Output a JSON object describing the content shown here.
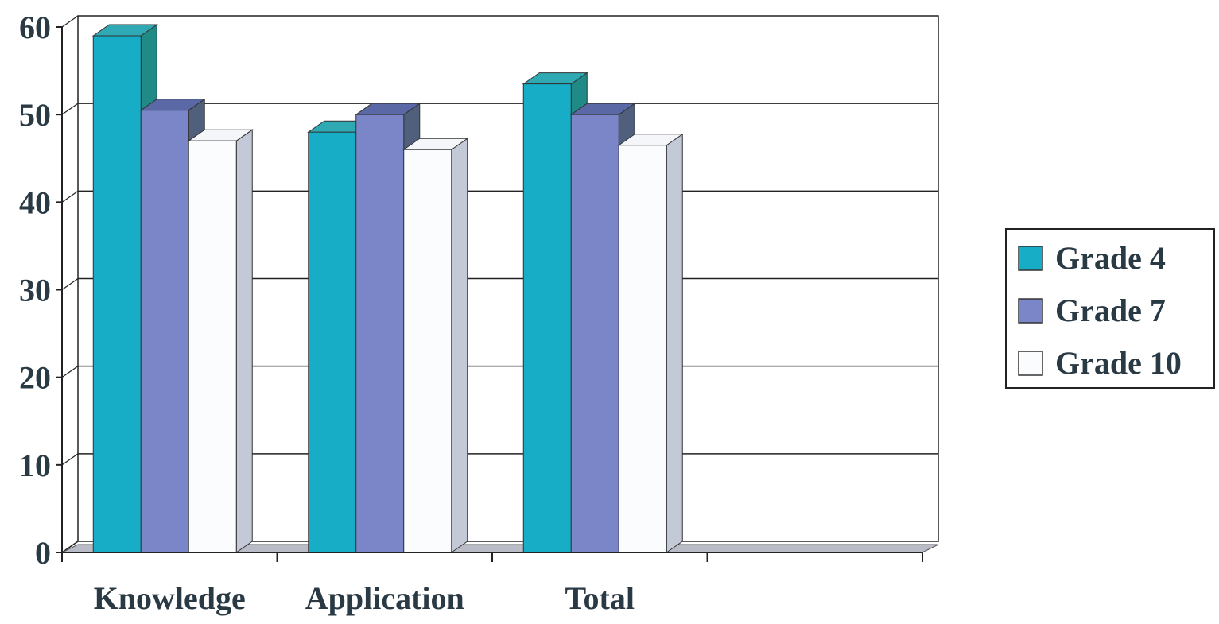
{
  "chart_data": {
    "type": "bar",
    "style": "3d-clustered",
    "categories": [
      "Knowledge",
      "Application",
      "Total"
    ],
    "series": [
      {
        "name": "Grade 4",
        "values": [
          59,
          48,
          53.5
        ],
        "color": "#18adc6",
        "side": "#1f8a86",
        "top": "#2fa9b4"
      },
      {
        "name": "Grade 7",
        "values": [
          50.5,
          50,
          50
        ],
        "color": "#7a86c8",
        "side": "#4f5f7c",
        "top": "#5a68a6"
      },
      {
        "name": "Grade 10",
        "values": [
          47,
          46,
          46.5
        ],
        "color": "#fafcfe",
        "side": "#c4c9d8",
        "top": "#f4f6fa"
      }
    ],
    "yticks": [
      "0",
      "10",
      "20",
      "30",
      "40",
      "50",
      "60"
    ],
    "ylim": [
      0,
      60
    ],
    "grid": true,
    "legend": "right",
    "empty_slots_after_categories": 1
  }
}
